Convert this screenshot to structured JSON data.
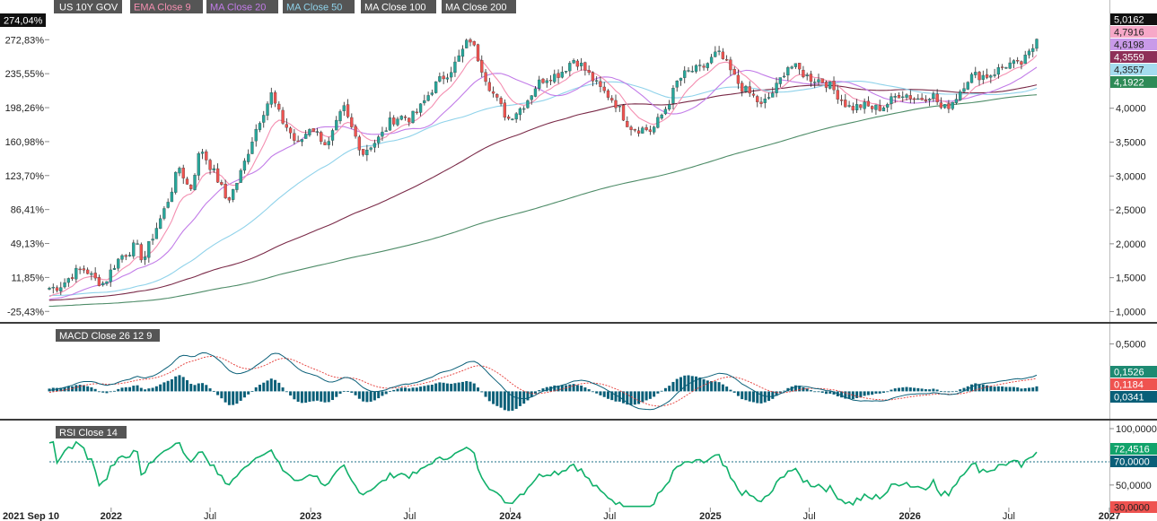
{
  "instrument_label": "US 10Y GOV",
  "legend": [
    {
      "label": "EMA  Close 9",
      "color": "#f48fb1"
    },
    {
      "label": "MA  Close 20",
      "color": "#c27ce8"
    },
    {
      "label": "MA  Close 50",
      "color": "#8fd2ea"
    },
    {
      "label": "MA  Close 100",
      "color": "#7a2a48"
    },
    {
      "label": "MA  Close 200",
      "color": "#4e8c68"
    }
  ],
  "colors": {
    "up": "#26a69a",
    "down": "#ef5350",
    "accent": "#0a5f78"
  },
  "x_axis_labels": [
    "2021 Sep 10",
    "2022",
    "Jul",
    "2023",
    "Jul",
    "2024",
    "Jul",
    "2025",
    "Jul",
    "2026",
    "Jul",
    "2027"
  ],
  "chart_data": [
    {
      "panel": "price",
      "type": "candlestick",
      "title": "US 10Y GOV",
      "x_range": [
        "2021-09-10",
        "2027-01-01"
      ],
      "y_range": [
        0.9,
        5.2
      ],
      "yticks": [
        "1,0000",
        "1,5000",
        "2,0000",
        "2,5000",
        "3,0000",
        "3,5000",
        "4,0000"
      ],
      "pct_ticks": [
        "272,83%",
        "235,55%",
        "198,26%",
        "160,98%",
        "123,70%",
        "86,41%",
        "49,13%",
        "11,85%",
        "-25,43%"
      ],
      "pct_current": "274,04%",
      "anchors": [
        {
          "date": "2021-09-10",
          "close": 1.34
        },
        {
          "date": "2021-11-15",
          "close": 1.62
        },
        {
          "date": "2021-12-20",
          "close": 1.41
        },
        {
          "date": "2022-01-20",
          "close": 1.82
        },
        {
          "date": "2022-02-15",
          "close": 2.02
        },
        {
          "date": "2022-03-01",
          "close": 1.72
        },
        {
          "date": "2022-04-01",
          "close": 2.38
        },
        {
          "date": "2022-05-05",
          "close": 3.12
        },
        {
          "date": "2022-05-25",
          "close": 2.74
        },
        {
          "date": "2022-06-14",
          "close": 3.47
        },
        {
          "date": "2022-08-01",
          "close": 2.6
        },
        {
          "date": "2022-09-01",
          "close": 3.2
        },
        {
          "date": "2022-10-21",
          "close": 4.24
        },
        {
          "date": "2022-11-10",
          "close": 3.82
        },
        {
          "date": "2022-12-07",
          "close": 3.42
        },
        {
          "date": "2023-01-01",
          "close": 3.79
        },
        {
          "date": "2023-02-01",
          "close": 3.39
        },
        {
          "date": "2023-03-02",
          "close": 4.05
        },
        {
          "date": "2023-04-06",
          "close": 3.29
        },
        {
          "date": "2023-05-26",
          "close": 3.8
        },
        {
          "date": "2023-07-01",
          "close": 3.86
        },
        {
          "date": "2023-08-21",
          "close": 4.34
        },
        {
          "date": "2023-10-19",
          "close": 4.99
        },
        {
          "date": "2023-12-27",
          "close": 3.79
        },
        {
          "date": "2024-02-15",
          "close": 4.3
        },
        {
          "date": "2024-04-25",
          "close": 4.7
        },
        {
          "date": "2024-06-01",
          "close": 4.45
        },
        {
          "date": "2024-08-05",
          "close": 3.78
        },
        {
          "date": "2024-09-16",
          "close": 3.62
        },
        {
          "date": "2024-11-01",
          "close": 4.38
        },
        {
          "date": "2025-01-13",
          "close": 4.79
        },
        {
          "date": "2025-04-04",
          "close": 4.0
        },
        {
          "date": "2025-05-21",
          "close": 4.6
        },
        {
          "date": "2025-07-15",
          "close": 4.45
        },
        {
          "date": "2025-09-16",
          "close": 4.03
        },
        {
          "date": "2025-10-20",
          "close": 3.98
        },
        {
          "date": "2025-12-15",
          "close": 4.18
        },
        {
          "date": "2026-02-10",
          "close": 4.18
        },
        {
          "date": "2026-03-01",
          "close": 3.95
        },
        {
          "date": "2026-04-15",
          "close": 4.4
        },
        {
          "date": "2026-06-01",
          "close": 4.55
        },
        {
          "date": "2026-07-20",
          "close": 4.65
        },
        {
          "date": "2026-08-25",
          "close": 5.02
        }
      ],
      "indicators_last": [
        {
          "name": "Close",
          "value": "5,0162"
        },
        {
          "name": "EMA Close 9",
          "value": "4,7916"
        },
        {
          "name": "MA Close 20",
          "value": "4,6198"
        },
        {
          "name": "MA Close 100",
          "value": "4,3559"
        },
        {
          "name": "MA Close 50",
          "value": "4,3557"
        },
        {
          "name": "MA Close 200",
          "value": "4,1922"
        }
      ]
    },
    {
      "panel": "macd",
      "type": "line",
      "title": "MACD  Close 26 12 9",
      "y_range": [
        -0.28,
        0.6
      ],
      "yticks": [
        "0,5000"
      ],
      "last_values": [
        {
          "name": "MACD",
          "value": "0,1526"
        },
        {
          "name": "Signal",
          "value": "0,1184"
        },
        {
          "name": "Histogram",
          "value": "0,0341"
        }
      ]
    },
    {
      "panel": "rsi",
      "type": "line",
      "title": "RSI  Close 14",
      "y_range": [
        30,
        100
      ],
      "yticks": [
        "100,0000",
        "50,0000"
      ],
      "overbought": "70,0000",
      "oversold": "30,0000",
      "last_value": "72,4516"
    }
  ]
}
